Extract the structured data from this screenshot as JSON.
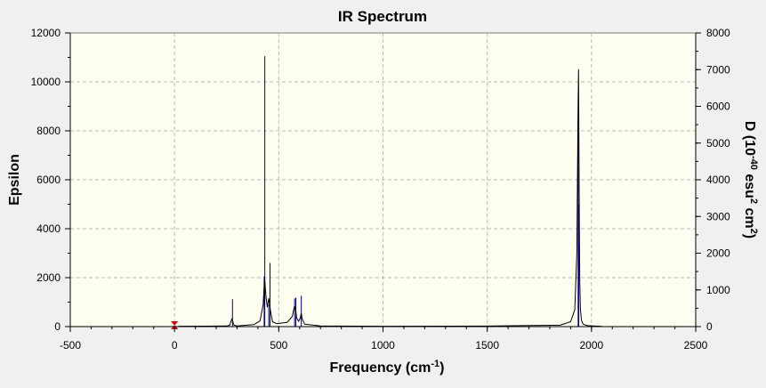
{
  "chart_data": {
    "type": "line",
    "title": "IR Spectrum",
    "xlabel_main": "Frequency (cm",
    "xlabel_sup": "-1",
    "xlabel_end": ")",
    "ylabel": "Epsilon",
    "y2label_parts": [
      "D (10",
      "-40",
      " esu",
      "2",
      " cm",
      "2",
      ")"
    ],
    "xlim": [
      -500,
      2500
    ],
    "ylim": [
      0,
      12000
    ],
    "y2lim": [
      0,
      8000
    ],
    "x_ticks": [
      -500,
      0,
      500,
      1000,
      1500,
      2000,
      2500
    ],
    "y_ticks": [
      0,
      2000,
      4000,
      6000,
      8000,
      10000,
      12000
    ],
    "y2_ticks": [
      0,
      1000,
      2000,
      3000,
      4000,
      5000,
      6000,
      7000,
      8000
    ],
    "grid": true,
    "series": [
      {
        "color": "#000000",
        "x": [
          20,
          150,
          250,
          265,
          275,
          285,
          300,
          380,
          410,
          425,
          432,
          438,
          445,
          452,
          460,
          470,
          490,
          540,
          565,
          575,
          580,
          585,
          595,
          603,
          608,
          613,
          625,
          700,
          1000,
          1500,
          1850,
          1900,
          1920,
          1930,
          1935,
          1938,
          1940,
          1942,
          1944,
          1947,
          1952,
          1960,
          1980,
          2050
        ],
        "y": [
          15,
          18,
          25,
          60,
          320,
          60,
          30,
          80,
          230,
          900,
          2000,
          1300,
          800,
          1150,
          650,
          200,
          120,
          170,
          420,
          820,
          780,
          380,
          210,
          350,
          550,
          300,
          100,
          30,
          15,
          20,
          60,
          200,
          700,
          3000,
          8400,
          10500,
          7000,
          4000,
          1800,
          700,
          250,
          100,
          40,
          10
        ]
      }
    ],
    "sticks": {
      "color": "#00008b",
      "peaks": [
        {
          "x": 278,
          "y": 1120
        },
        {
          "x": 430,
          "y": 2050
        },
        {
          "x": 433,
          "y": 11050
        },
        {
          "x": 452,
          "y": 900
        },
        {
          "x": 458,
          "y": 2600
        },
        {
          "x": 576,
          "y": 1150
        },
        {
          "x": 582,
          "y": 1180
        },
        {
          "x": 608,
          "y": 1260
        },
        {
          "x": 1936,
          "y": 8500
        },
        {
          "x": 1939,
          "y": 5000
        }
      ]
    },
    "marker": {
      "x": 0,
      "y": 0,
      "color": "#e00000"
    }
  }
}
